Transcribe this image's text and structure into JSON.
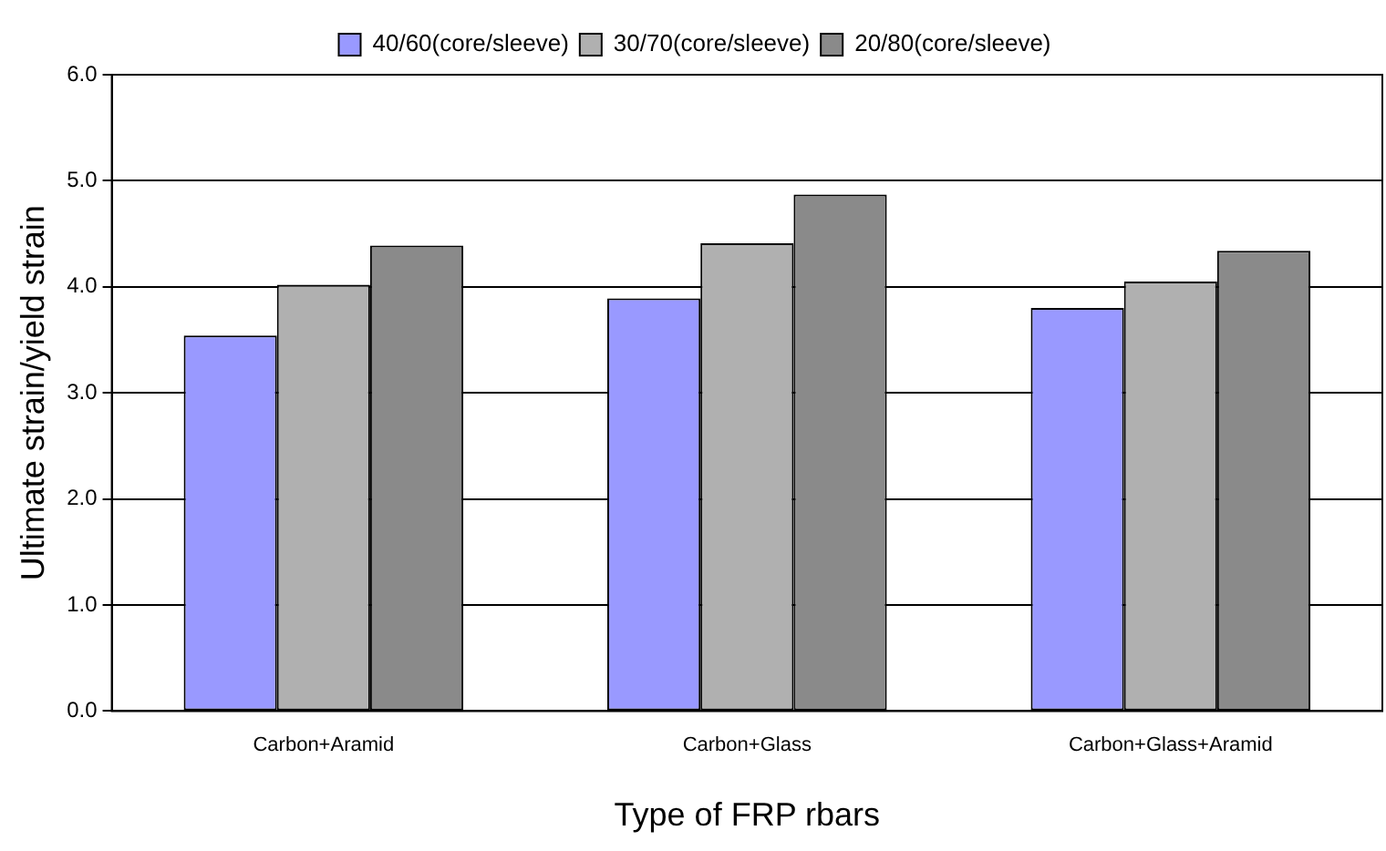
{
  "chart_data": {
    "type": "bar",
    "xlabel": "Type of FRP rbars",
    "ylabel": "Ultimate strain/yield strain",
    "categories": [
      "Carbon+Aramid",
      "Carbon+Glass",
      "Carbon+Glass+Aramid"
    ],
    "series": [
      {
        "name": "40/60(core/sleeve)",
        "color": "#9999ff",
        "values": [
          3.54,
          3.89,
          3.8
        ]
      },
      {
        "name": "30/70(core/sleeve)",
        "color": "#b0b0b0",
        "values": [
          4.02,
          4.41,
          4.05
        ]
      },
      {
        "name": "20/80(core/sleeve)",
        "color": "#8a8a8a",
        "values": [
          4.39,
          4.87,
          4.34
        ]
      }
    ],
    "ylim": [
      0,
      6
    ],
    "yticks": [
      {
        "value": 0,
        "label": "0.0"
      },
      {
        "value": 1,
        "label": "1.0"
      },
      {
        "value": 2,
        "label": "2.0"
      },
      {
        "value": 3,
        "label": "3.0"
      },
      {
        "value": 4,
        "label": "4.0"
      },
      {
        "value": 5,
        "label": "5.0"
      },
      {
        "value": 6,
        "label": "6.0"
      }
    ],
    "grid": "y",
    "legend": "top"
  }
}
